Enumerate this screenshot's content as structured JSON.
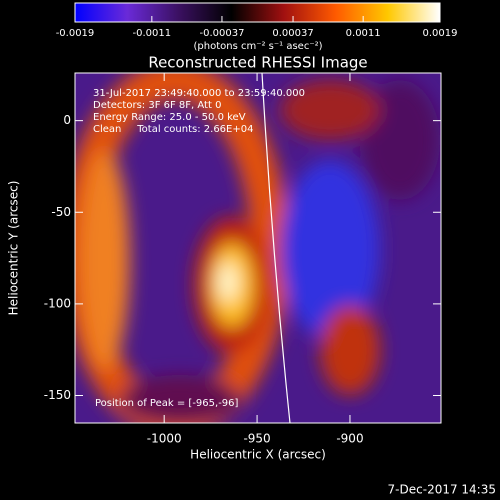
{
  "chart_data": {
    "type": "image",
    "title": "Reconstructed RHESSI Image",
    "x_label": "Heliocentric X (arcsec)",
    "y_label": "Heliocentric Y (arcsec)",
    "xlim": [
      -1048,
      -851
    ],
    "xticks": [
      -1000,
      -950,
      -900
    ],
    "ylim": [
      -165,
      26
    ],
    "yticks": [
      -150,
      -100,
      -50,
      0
    ],
    "colorbar": {
      "lim": [
        -0.0019,
        0.0019
      ],
      "ticks": [
        -0.0019,
        -0.0011,
        -0.00037,
        0.00037,
        0.0011,
        0.0019
      ],
      "label": "(photons cm⁻² s⁻¹ asec⁻²)",
      "colors": [
        "#0000ff",
        "#6a2ad8",
        "#3a1060",
        "#000000",
        "#a01010",
        "#ff5a00",
        "#ffc800",
        "#ffffff"
      ]
    },
    "annotations": [
      "31-Jul-2017 23:49:40.000 to 23:59:40.000",
      "Detectors: 3F 6F 8F, Att 0",
      "Energy Range: 25.0 - 50.0 keV",
      "Clean     Total counts: 2.66E+04"
    ],
    "peak_label": "Position of Peak = [-965,-96]",
    "footer": "7-Dec-2017 14:35"
  }
}
